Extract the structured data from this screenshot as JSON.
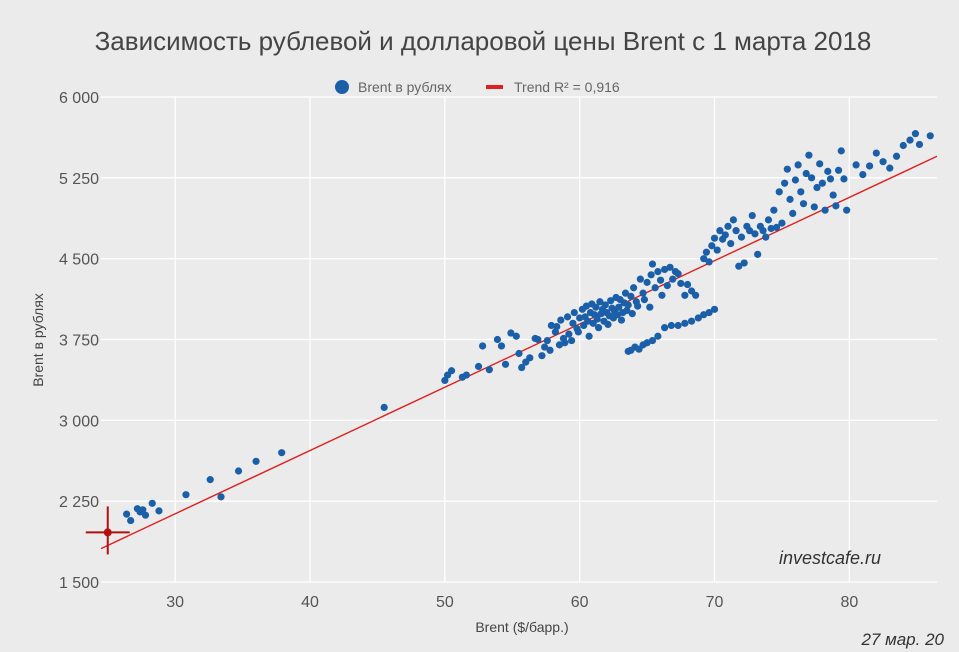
{
  "chart_data": {
    "type": "scatter",
    "title": "Зависимость рублевой и долларовой цены Brent с 1 марта 2018",
    "xlabel": "Brent ($/барр.)",
    "ylabel": "Brent в рублях",
    "xlim": [
      24.5,
      86.5
    ],
    "ylim": [
      1500,
      6000
    ],
    "xticks": [
      30,
      40,
      50,
      60,
      70,
      80
    ],
    "yticks": [
      1500,
      2250,
      3000,
      3750,
      4500,
      5250,
      6000
    ],
    "ytick_labels": [
      "1 500",
      "2 250",
      "3 000",
      "3 750",
      "4 500",
      "5 250",
      "6 000"
    ],
    "grid": true,
    "legend_position": "top",
    "colors": {
      "points": "#1a5fa8",
      "trend": "#e02020",
      "marker": "#b01010",
      "background": "#ebebeb"
    },
    "series": [
      {
        "name": "Brent в рублях",
        "kind": "scatter",
        "points": [
          [
            25.0,
            1960
          ],
          [
            26.4,
            2130
          ],
          [
            26.7,
            2070
          ],
          [
            27.2,
            2180
          ],
          [
            27.4,
            2150
          ],
          [
            27.6,
            2170
          ],
          [
            27.8,
            2120
          ],
          [
            28.3,
            2230
          ],
          [
            28.8,
            2160
          ],
          [
            30.8,
            2310
          ],
          [
            32.6,
            2450
          ],
          [
            33.4,
            2290
          ],
          [
            34.7,
            2530
          ],
          [
            36.0,
            2620
          ],
          [
            37.9,
            2700
          ],
          [
            45.5,
            3120
          ],
          [
            50.0,
            3370
          ],
          [
            50.2,
            3420
          ],
          [
            50.5,
            3460
          ],
          [
            51.3,
            3400
          ],
          [
            51.6,
            3420
          ],
          [
            52.5,
            3500
          ],
          [
            52.8,
            3690
          ],
          [
            53.3,
            3470
          ],
          [
            53.9,
            3750
          ],
          [
            54.2,
            3690
          ],
          [
            54.5,
            3520
          ],
          [
            54.9,
            3810
          ],
          [
            55.3,
            3780
          ],
          [
            55.5,
            3620
          ],
          [
            55.7,
            3490
          ],
          [
            56.0,
            3540
          ],
          [
            56.3,
            3580
          ],
          [
            56.7,
            3760
          ],
          [
            56.9,
            3750
          ],
          [
            57.2,
            3600
          ],
          [
            57.4,
            3680
          ],
          [
            57.6,
            3740
          ],
          [
            57.8,
            3650
          ],
          [
            57.9,
            3880
          ],
          [
            58.2,
            3820
          ],
          [
            58.3,
            3870
          ],
          [
            58.5,
            3700
          ],
          [
            58.6,
            3930
          ],
          [
            58.8,
            3760
          ],
          [
            58.9,
            3720
          ],
          [
            59.1,
            3960
          ],
          [
            59.2,
            3800
          ],
          [
            59.4,
            3740
          ],
          [
            59.5,
            3900
          ],
          [
            59.6,
            4000
          ],
          [
            59.8,
            3850
          ],
          [
            59.9,
            3820
          ],
          [
            60.0,
            3950
          ],
          [
            60.2,
            4030
          ],
          [
            60.3,
            3880
          ],
          [
            60.4,
            3960
          ],
          [
            60.5,
            4060
          ],
          [
            60.6,
            3920
          ],
          [
            60.7,
            3780
          ],
          [
            60.8,
            4000
          ],
          [
            60.9,
            4080
          ],
          [
            61.0,
            3900
          ],
          [
            61.1,
            3980
          ],
          [
            61.2,
            4050
          ],
          [
            61.3,
            3940
          ],
          [
            61.4,
            3860
          ],
          [
            61.5,
            4100
          ],
          [
            61.6,
            3990
          ],
          [
            61.7,
            4030
          ],
          [
            61.8,
            3920
          ],
          [
            61.9,
            4070
          ],
          [
            62.0,
            4000
          ],
          [
            62.1,
            3890
          ],
          [
            62.2,
            3970
          ],
          [
            62.3,
            4110
          ],
          [
            62.4,
            4040
          ],
          [
            62.5,
            3950
          ],
          [
            62.6,
            4010
          ],
          [
            62.7,
            4140
          ],
          [
            62.8,
            3980
          ],
          [
            62.9,
            4050
          ],
          [
            63.0,
            4120
          ],
          [
            63.1,
            3930
          ],
          [
            63.2,
            4000
          ],
          [
            63.3,
            4090
          ],
          [
            63.4,
            4180
          ],
          [
            63.5,
            4020
          ],
          [
            63.6,
            4070
          ],
          [
            63.8,
            4150
          ],
          [
            63.9,
            3990
          ],
          [
            64.0,
            4230
          ],
          [
            64.2,
            4100
          ],
          [
            64.3,
            4060
          ],
          [
            64.5,
            4310
          ],
          [
            64.7,
            4180
          ],
          [
            64.8,
            4120
          ],
          [
            65.0,
            4280
          ],
          [
            65.2,
            4050
          ],
          [
            65.3,
            4350
          ],
          [
            65.4,
            4450
          ],
          [
            65.6,
            4230
          ],
          [
            65.8,
            4380
          ],
          [
            66.0,
            4300
          ],
          [
            66.1,
            4160
          ],
          [
            66.3,
            4400
          ],
          [
            66.5,
            4250
          ],
          [
            66.7,
            4420
          ],
          [
            66.9,
            4310
          ],
          [
            67.1,
            4380
          ],
          [
            67.3,
            4360
          ],
          [
            67.5,
            4270
          ],
          [
            67.8,
            4160
          ],
          [
            68.0,
            4260
          ],
          [
            68.3,
            4200
          ],
          [
            68.6,
            4160
          ],
          [
            63.6,
            3640
          ],
          [
            63.8,
            3650
          ],
          [
            64.1,
            3680
          ],
          [
            64.4,
            3660
          ],
          [
            64.7,
            3700
          ],
          [
            65.0,
            3720
          ],
          [
            65.4,
            3740
          ],
          [
            65.8,
            3780
          ],
          [
            66.3,
            3860
          ],
          [
            66.8,
            3880
          ],
          [
            67.3,
            3880
          ],
          [
            67.8,
            3900
          ],
          [
            68.3,
            3920
          ],
          [
            68.8,
            3950
          ],
          [
            69.2,
            3980
          ],
          [
            69.6,
            4000
          ],
          [
            70.0,
            4030
          ],
          [
            69.2,
            4500
          ],
          [
            69.4,
            4560
          ],
          [
            69.6,
            4470
          ],
          [
            69.8,
            4620
          ],
          [
            70.0,
            4690
          ],
          [
            70.2,
            4580
          ],
          [
            70.4,
            4760
          ],
          [
            70.6,
            4680
          ],
          [
            70.8,
            4720
          ],
          [
            71.0,
            4800
          ],
          [
            71.2,
            4640
          ],
          [
            71.4,
            4860
          ],
          [
            71.6,
            4760
          ],
          [
            71.8,
            4430
          ],
          [
            72.0,
            4700
          ],
          [
            72.2,
            4460
          ],
          [
            72.4,
            4800
          ],
          [
            72.6,
            4760
          ],
          [
            72.8,
            4900
          ],
          [
            73.0,
            4730
          ],
          [
            73.2,
            4540
          ],
          [
            73.4,
            4800
          ],
          [
            73.6,
            4760
          ],
          [
            73.8,
            4700
          ],
          [
            74.0,
            4860
          ],
          [
            74.2,
            4780
          ],
          [
            74.4,
            4950
          ],
          [
            74.6,
            4790
          ],
          [
            74.8,
            5120
          ],
          [
            75.0,
            4830
          ],
          [
            75.2,
            5200
          ],
          [
            75.4,
            5330
          ],
          [
            75.6,
            5050
          ],
          [
            75.8,
            4920
          ],
          [
            76.0,
            5230
          ],
          [
            76.2,
            5370
          ],
          [
            76.4,
            5120
          ],
          [
            76.6,
            5010
          ],
          [
            76.8,
            5290
          ],
          [
            77.0,
            5460
          ],
          [
            77.2,
            5250
          ],
          [
            77.4,
            4980
          ],
          [
            77.6,
            5160
          ],
          [
            77.8,
            5380
          ],
          [
            78.0,
            5200
          ],
          [
            78.2,
            4950
          ],
          [
            78.4,
            5310
          ],
          [
            78.6,
            5240
          ],
          [
            78.8,
            5090
          ],
          [
            79.0,
            4990
          ],
          [
            79.2,
            5320
          ],
          [
            79.4,
            5500
          ],
          [
            79.6,
            5240
          ],
          [
            79.8,
            4950
          ],
          [
            80.5,
            5370
          ],
          [
            81.0,
            5280
          ],
          [
            81.5,
            5360
          ],
          [
            82.0,
            5480
          ],
          [
            82.5,
            5400
          ],
          [
            83.0,
            5340
          ],
          [
            83.5,
            5450
          ],
          [
            84.0,
            5550
          ],
          [
            84.5,
            5600
          ],
          [
            84.9,
            5660
          ],
          [
            85.2,
            5560
          ],
          [
            86.0,
            5640
          ]
        ]
      },
      {
        "name": "Trend R² = 0,916",
        "kind": "line",
        "points": [
          [
            24.5,
            1810
          ],
          [
            86.5,
            5450
          ]
        ]
      }
    ],
    "annotations": [
      "investcafe.ru",
      "27 мар. 20"
    ]
  }
}
